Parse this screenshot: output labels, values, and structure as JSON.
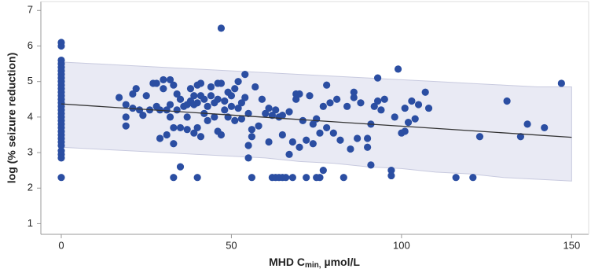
{
  "chart_data": {
    "type": "scatter",
    "xlabel_main": "MHD C",
    "xlabel_sub": "min,",
    "xlabel_unit": "µmol/L",
    "ylabel": "log (% seizure reduction)",
    "xlim": [
      -6,
      155
    ],
    "ylim": [
      0.7,
      7.25
    ],
    "xticks": [
      0,
      50,
      100,
      150
    ],
    "yticks": [
      1,
      2,
      3,
      4,
      5,
      6,
      7
    ],
    "color": "#2b4ea2",
    "x": [
      0,
      0,
      0,
      0,
      0,
      0,
      0,
      0,
      0,
      0,
      0,
      0,
      0,
      0,
      0,
      0,
      0,
      0,
      0,
      0,
      0,
      0,
      0,
      0,
      0,
      0,
      0,
      0,
      0,
      0,
      0,
      17,
      19,
      19,
      19,
      21,
      21,
      22,
      23,
      24,
      25,
      26,
      27,
      28,
      28,
      29,
      29,
      30,
      30,
      31,
      31,
      32,
      32,
      32,
      33,
      33,
      33,
      33,
      34,
      34,
      35,
      35,
      35,
      36,
      37,
      37,
      37,
      38,
      38,
      39,
      39,
      39,
      40,
      40,
      40,
      40,
      41,
      41,
      41,
      42,
      42,
      43,
      43,
      44,
      44,
      45,
      45,
      46,
      46,
      46,
      47,
      47,
      47,
      48,
      48,
      49,
      49,
      50,
      50,
      51,
      51,
      52,
      52,
      53,
      53,
      54,
      54,
      55,
      55,
      55,
      56,
      56,
      56,
      57,
      58,
      59,
      60,
      61,
      61,
      62,
      62,
      63,
      63,
      64,
      64,
      65,
      65,
      65,
      66,
      67,
      67,
      68,
      68,
      69,
      69,
      70,
      70,
      71,
      72,
      72,
      73,
      74,
      74,
      75,
      75,
      76,
      76,
      77,
      77,
      78,
      78,
      79,
      80,
      81,
      82,
      83,
      84,
      85,
      86,
      86,
      87,
      88,
      90,
      90,
      91,
      91,
      92,
      93,
      93,
      94,
      95,
      97,
      97,
      98,
      99,
      100,
      101,
      101,
      102,
      103,
      104,
      105,
      107,
      108,
      116,
      121,
      123,
      131,
      135,
      137,
      142,
      147
    ],
    "values": [
      6.1,
      6.0,
      5.6,
      5.5,
      5.4,
      5.3,
      5.2,
      5.1,
      5.0,
      4.9,
      4.8,
      4.7,
      4.6,
      4.5,
      4.4,
      4.3,
      4.2,
      4.1,
      4.0,
      3.9,
      3.8,
      3.7,
      3.6,
      3.5,
      3.4,
      3.3,
      3.2,
      3.05,
      2.95,
      2.85,
      2.3,
      4.55,
      4.0,
      4.35,
      3.75,
      4.25,
      4.65,
      4.8,
      4.2,
      4.05,
      4.6,
      4.2,
      4.95,
      4.3,
      4.95,
      4.2,
      3.4,
      5.05,
      4.8,
      4.2,
      3.5,
      4.35,
      4.0,
      5.05,
      4.9,
      3.7,
      3.25,
      2.3,
      4.65,
      4.2,
      4.5,
      3.7,
      2.6,
      4.3,
      4.35,
      4.0,
      3.65,
      4.8,
      4.45,
      4.6,
      4.35,
      3.55,
      4.9,
      4.4,
      3.7,
      2.3,
      4.95,
      4.6,
      3.45,
      4.5,
      4.1,
      4.3,
      3.9,
      4.6,
      4.85,
      4.4,
      4.0,
      4.95,
      4.5,
      3.6,
      6.5,
      4.95,
      3.5,
      4.2,
      4.45,
      4.7,
      4.0,
      4.3,
      4.6,
      4.8,
      3.9,
      5.0,
      4.25,
      4.4,
      3.95,
      5.2,
      4.55,
      4.1,
      3.2,
      2.85,
      3.65,
      3.45,
      2.3,
      4.85,
      3.75,
      4.5,
      4.1,
      4.25,
      3.3,
      4.05,
      2.3,
      4.2,
      2.3,
      4.0,
      2.3,
      4.05,
      3.5,
      2.3,
      2.3,
      4.15,
      2.95,
      3.3,
      2.3,
      4.65,
      4.5,
      4.65,
      3.15,
      3.9,
      3.35,
      2.3,
      4.6,
      3.8,
      3.25,
      3.95,
      2.3,
      3.55,
      2.3,
      4.3,
      2.5,
      4.9,
      3.7,
      4.4,
      3.55,
      4.5,
      3.35,
      2.3,
      4.3,
      3.1,
      4.55,
      4.7,
      3.4,
      4.4,
      3.4,
      3.15,
      3.8,
      2.65,
      4.3,
      4.45,
      5.1,
      4.2,
      4.5,
      2.35,
      2.5,
      4.0,
      5.35,
      3.55,
      3.6,
      4.25,
      3.85,
      4.45,
      3.95,
      4.35,
      4.7,
      4.25,
      2.3,
      2.3,
      3.45,
      4.45,
      3.45,
      3.8,
      3.7,
      4.95
    ],
    "fit": {
      "x": [
        0,
        150
      ],
      "y": [
        4.37,
        3.43
      ]
    },
    "band": {
      "x": [
        0,
        10,
        20,
        30,
        40,
        50,
        60,
        70,
        80,
        90,
        100,
        110,
        120,
        130,
        140,
        150
      ],
      "upper": [
        5.55,
        5.5,
        5.45,
        5.4,
        5.35,
        5.3,
        5.25,
        5.2,
        5.15,
        5.1,
        5.05,
        5.0,
        4.95,
        4.9,
        4.85,
        4.85
      ],
      "lower": [
        3.15,
        3.1,
        3.05,
        3.0,
        2.95,
        2.9,
        2.85,
        2.75,
        2.7,
        2.6,
        2.55,
        2.45,
        2.4,
        2.3,
        2.25,
        2.2
      ]
    }
  }
}
